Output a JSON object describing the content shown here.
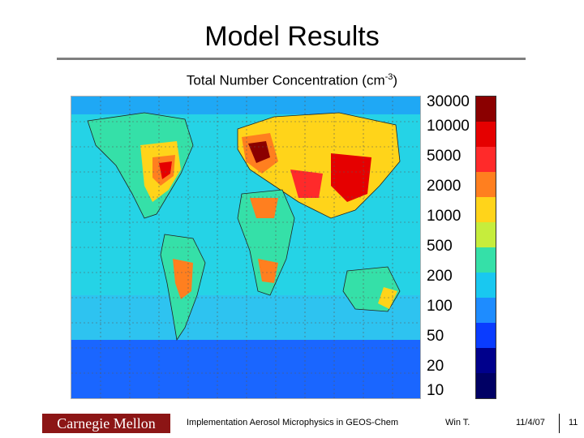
{
  "slide": {
    "title": "Model Results",
    "subtitle_main": "Total Number Concentration (cm",
    "subtitle_sup": "-3",
    "subtitle_end": ")"
  },
  "colorbar": {
    "labels": [
      "30000",
      "10000",
      "5000",
      "2000",
      "1000",
      "500",
      "200",
      "100",
      "50",
      "20",
      "10"
    ],
    "colors": [
      "#8b0000",
      "#e50000",
      "#ff2a2a",
      "#ff7f1f",
      "#ffd41a",
      "#c6ed3c",
      "#35e0a8",
      "#19c8f0",
      "#1e8cff",
      "#0a3cff",
      "#00008c",
      "#000064"
    ]
  },
  "map": {
    "background_color": "#25d3e6",
    "ocean_color": "#2ec3f0",
    "southern_ocean_color": "#1a66ff",
    "land_color": "#35e0a8"
  },
  "footer": {
    "logo_text": "Carnegie Mellon",
    "description": "Implementation Aerosol Microphysics in GEOS-Chem",
    "author": "Win T.",
    "date": "11/4/07",
    "page": "11"
  }
}
